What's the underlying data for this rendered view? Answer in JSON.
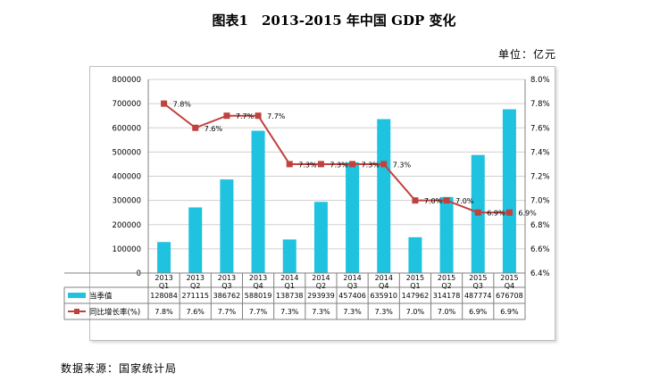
{
  "title": "图表1　2013-2015 年中国 GDP 变化",
  "unit_label": "单位：亿元",
  "source_label": "数据来源：国家统计局",
  "colors": {
    "bar": "#1fc3df",
    "line": "#c0413e",
    "grid": "#d0d0d0",
    "axis": "#808080"
  },
  "chart_data": {
    "type": "bar",
    "categories": [
      "2013 Q1",
      "2013 Q2",
      "2013 Q3",
      "2013 Q4",
      "2014 Q1",
      "2014 Q2",
      "2014 Q3",
      "2014 Q4",
      "2015 Q1",
      "2015 Q2",
      "2015 Q3",
      "2015 Q4"
    ],
    "category_lines": [
      [
        "2013",
        "Q1"
      ],
      [
        "2013",
        "Q2"
      ],
      [
        "2013",
        "Q3"
      ],
      [
        "2013",
        "Q4"
      ],
      [
        "2014",
        "Q1"
      ],
      [
        "2014",
        "Q2"
      ],
      [
        "2014",
        "Q3"
      ],
      [
        "2014",
        "Q4"
      ],
      [
        "2015",
        "Q1"
      ],
      [
        "2015",
        "Q2"
      ],
      [
        "2015",
        "Q3"
      ],
      [
        "2015",
        "Q4"
      ]
    ],
    "series": [
      {
        "name": "当季值",
        "type": "bar",
        "axis": "left",
        "values": [
          128084,
          271115,
          386762,
          588019,
          138738,
          293939,
          457406,
          635910,
          147962,
          314178,
          487774,
          676708
        ]
      },
      {
        "name": "同比增长率(%)",
        "type": "line",
        "axis": "right",
        "values": [
          7.8,
          7.6,
          7.7,
          7.7,
          7.3,
          7.3,
          7.3,
          7.3,
          7.0,
          7.0,
          6.9,
          6.9
        ],
        "labels": [
          "7.8%",
          "7.6%",
          "7.7%",
          "7.7%",
          "7.3%",
          "7.3%",
          "7.3%",
          "7.3%",
          "7.0%",
          "7.0%",
          "6.9%",
          "6.9%"
        ]
      }
    ],
    "y_left": {
      "min": 0,
      "max": 800000,
      "ticks": [
        "0",
        "100000",
        "200000",
        "300000",
        "400000",
        "500000",
        "600000",
        "700000",
        "800000"
      ]
    },
    "y_right": {
      "min": 6.4,
      "max": 8.0,
      "ticks": [
        "6.4%",
        "6.6%",
        "6.8%",
        "7.0%",
        "7.2%",
        "7.4%",
        "7.6%",
        "7.8%",
        "8.0%"
      ]
    },
    "table_rows": [
      {
        "legend": "当季值",
        "cells": [
          "128084",
          "271115",
          "386762",
          "588019",
          "138738",
          "293939",
          "457406",
          "635910",
          "147962",
          "314178",
          "487774",
          "676708"
        ]
      },
      {
        "legend": "同比增长率(%)",
        "cells": [
          "7.8%",
          "7.6%",
          "7.7%",
          "7.7%",
          "7.3%",
          "7.3%",
          "7.3%",
          "7.3%",
          "7.0%",
          "7.0%",
          "6.9%",
          "6.9%"
        ]
      }
    ],
    "grid": true
  }
}
